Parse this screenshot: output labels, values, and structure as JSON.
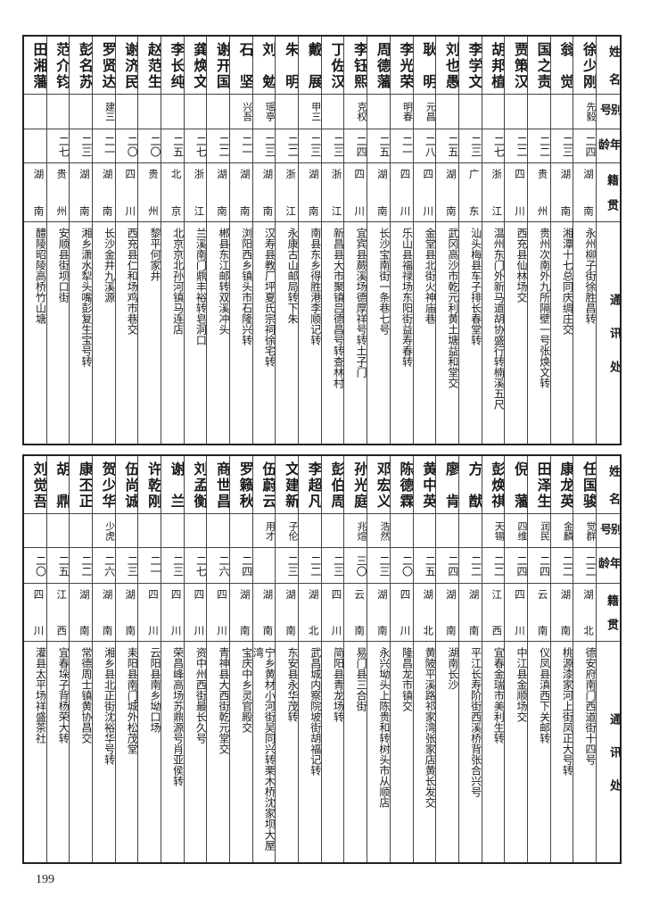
{
  "tables": [
    {
      "header": {
        "name": "姓名",
        "alias": "别号",
        "age": "年龄",
        "origin": "籍贯",
        "address": "通讯处"
      },
      "rows": [
        {
          "name": "徐少刚",
          "alias": "先毅",
          "age": "二四",
          "origin": "湖南",
          "address": "永州柳子街徐胜昌转"
        },
        {
          "name": "翁觉",
          "alias": "",
          "age": "二三",
          "origin": "湖南",
          "address": "湘潭十七总同庆绸庄交"
        },
        {
          "name": "国之责",
          "alias": "",
          "age": "二二",
          "origin": "贵州",
          "address": "贵州次南外九所隔壁一号张焕文转"
        },
        {
          "name": "贾策汉",
          "alias": "",
          "age": "二二",
          "origin": "四川",
          "address": "西充县仙林场交"
        },
        {
          "name": "胡邦植",
          "alias": "",
          "age": "二七",
          "origin": "浙江",
          "address": "温州东门外新马道胡协盛行转楠溪五尺"
        },
        {
          "name": "李学文",
          "alias": "",
          "age": "二三",
          "origin": "广东",
          "address": "汕头梅县车子排长春堂转"
        },
        {
          "name": "刘也愚",
          "alias": "",
          "age": "二五",
          "origin": "湖南",
          "address": "武冈高沙市乾元利黄土塘益和堂交"
        },
        {
          "name": "耿明",
          "alias": "元昌",
          "age": "二八",
          "origin": "四川",
          "address": "金堂县北街火神庙巷"
        },
        {
          "name": "李光荣",
          "alias": "明春",
          "age": "二一",
          "origin": "四川",
          "address": "乐山县福禄场东阳街益寿春转"
        },
        {
          "name": "周德藩",
          "alias": "",
          "age": "二五",
          "origin": "湖南",
          "address": "长沙宝南街一条巷七号"
        },
        {
          "name": "李钰熙",
          "alias": "克权",
          "age": "二四",
          "origin": "四川",
          "address": "宜宾县蕨溪场德厚祥号转土子门"
        },
        {
          "name": "丁佐汉",
          "alias": "",
          "age": "二三",
          "origin": "浙江",
          "address": "新昌县大市聚镇吕德昌号转查林村"
        },
        {
          "name": "戴展",
          "alias": "甲三",
          "age": "二三",
          "origin": "湖南",
          "address": "南县东乡得胜港李顺记转"
        },
        {
          "name": "朱明",
          "alias": "",
          "age": "二二",
          "origin": "浙江",
          "address": "永康古山邮局转下朱"
        },
        {
          "name": "刘勉",
          "alias": "瑶亭",
          "age": "二三",
          "origin": "湖南",
          "address": "汉寿县教厂坪夏氏宗祠徐宅转"
        },
        {
          "name": "石坚",
          "alias": "兴吾",
          "age": "二一",
          "origin": "湖南",
          "address": "浏阳西乡镇头市石隆兴转"
        },
        {
          "name": "谢开国",
          "alias": "",
          "age": "二二",
          "origin": "湖南",
          "address": "郴县东江邮转双溪冲头"
        },
        {
          "name": "龚焕文",
          "alias": "",
          "age": "二七",
          "origin": "浙江",
          "address": "兰溪南门鼎丰裕转皂洞口"
        },
        {
          "name": "李长纯",
          "alias": "",
          "age": "二五",
          "origin": "北京",
          "address": "北京京北孙河镇马连店"
        },
        {
          "name": "赵范生",
          "alias": "",
          "age": "二〇",
          "origin": "贵州",
          "address": "黎平何家井"
        },
        {
          "name": "谢济民",
          "alias": "",
          "age": "二〇",
          "origin": "四川",
          "address": "西充县仁和场鸡市巷交"
        },
        {
          "name": "罗贤达",
          "alias": "建三",
          "age": "二一",
          "origin": "湖南",
          "address": "长沙金井九溪源"
        },
        {
          "name": "彭名苏",
          "alias": "",
          "age": "二三",
          "origin": "湖南",
          "address": "湘乡潇水犁头嘴彭复生宝号转"
        },
        {
          "name": "范介钧",
          "alias": "",
          "age": "二七",
          "origin": "贵州",
          "address": "安顺县街坝口街"
        },
        {
          "name": "田湘藩",
          "alias": "",
          "age": "",
          "origin": "湖南",
          "address": "醴陵昭陵高桥竹山塘"
        }
      ]
    },
    {
      "header": {
        "name": "姓名",
        "alias": "别号",
        "age": "年龄",
        "origin": "籍贯",
        "address": "通讯处"
      },
      "rows": [
        {
          "name": "任国骏",
          "alias": "觉群",
          "age": "二二",
          "origin": "湖北",
          "address": "德安府南门西道街十四号"
        },
        {
          "name": "康龙英",
          "alias": "金麟",
          "age": "二二",
          "origin": "湖南",
          "address": "桃源漆家河上街凤正大号转"
        },
        {
          "name": "田泽生",
          "alias": "润民",
          "age": "二四",
          "origin": "云南",
          "address": "仪凤县滇西下关邮转"
        },
        {
          "name": "倪藩",
          "alias": "四维",
          "age": "二四",
          "origin": "四川",
          "address": "中江县金顺场交"
        },
        {
          "name": "彭焕祺",
          "alias": "天锡",
          "age": "二二",
          "origin": "江西",
          "address": "宜春金瑞市美利生转"
        },
        {
          "name": "方猷",
          "alias": "",
          "age": "二二",
          "origin": "湖南",
          "address": "平江长寿阶街西溪桥背张合兴号"
        },
        {
          "name": "廖肯",
          "alias": "",
          "age": "二四",
          "origin": "湖南",
          "address": "湖南长沙"
        },
        {
          "name": "黄中英",
          "alias": "",
          "age": "二五",
          "origin": "湖北",
          "address": "黄陂平溪路祁家湾张家店黄长发交"
        },
        {
          "name": "陈德霖",
          "alias": "",
          "age": "二〇",
          "origin": "四川",
          "address": "隆昌龙市镇交"
        },
        {
          "name": "邓宏义",
          "alias": "浩然",
          "age": "二三",
          "origin": "湖南",
          "address": "永兴坳头上陈贵和转树头市从顺店"
        },
        {
          "name": "孙光庭",
          "alias": "兆煊",
          "age": "三〇",
          "origin": "云南",
          "address": "易门县三合街"
        },
        {
          "name": "彭伯周",
          "alias": "",
          "age": "二三",
          "origin": "四川",
          "address": "简阳县青龙场转"
        },
        {
          "name": "李超凡",
          "alias": "",
          "age": "二二",
          "origin": "湖北",
          "address": "武昌城内察院坡街胡福记转"
        },
        {
          "name": "文建新",
          "alias": "子伦",
          "age": "二三",
          "origin": "湖南",
          "address": "东安县永华茂转"
        },
        {
          "name": "伍蔚云",
          "alias": "用才",
          "age": "",
          "origin": "湖南",
          "address": "宁乡黄材小河街吴同兴转栗木桥沈家坝大屋湾"
        },
        {
          "name": "罗籁秋",
          "alias": "",
          "age": "二四",
          "origin": "湖南",
          "address": "宝庆中乡灵官殿交"
        },
        {
          "name": "商世昌",
          "alias": "",
          "age": "二六",
          "origin": "四川",
          "address": "青神县大西街乾元堂交"
        },
        {
          "name": "刘孟衡",
          "alias": "",
          "age": "二七",
          "origin": "四川",
          "address": "资中州西街最长久号"
        },
        {
          "name": "谢兰",
          "alias": "",
          "age": "二三",
          "origin": "四川",
          "address": "荣昌峰高场苏鼎源号肖亚侯转"
        },
        {
          "name": "许乾刚",
          "alias": "",
          "age": "二一",
          "origin": "四川",
          "address": "云阳县南乡坳口场"
        },
        {
          "name": "伍尚诚",
          "alias": "",
          "age": "二三",
          "origin": "湖南",
          "address": "耒阳县南门城外松茂堂"
        },
        {
          "name": "贺少华",
          "alias": "少虎",
          "age": "二六",
          "origin": "湖南",
          "address": "湘乡县北正街沈裕华号转"
        },
        {
          "name": "康丕正",
          "alias": "",
          "age": "二二",
          "origin": "湖南",
          "address": "常德周士镇黄协昌交"
        },
        {
          "name": "胡鼎",
          "alias": "",
          "age": "二五",
          "origin": "江西",
          "address": "宜春垛子背杨荣大转"
        },
        {
          "name": "刘觉吾",
          "alias": "",
          "age": "二〇",
          "origin": "四川",
          "address": "灌县太平场祥盛茶社"
        }
      ]
    }
  ],
  "page_number": "199"
}
